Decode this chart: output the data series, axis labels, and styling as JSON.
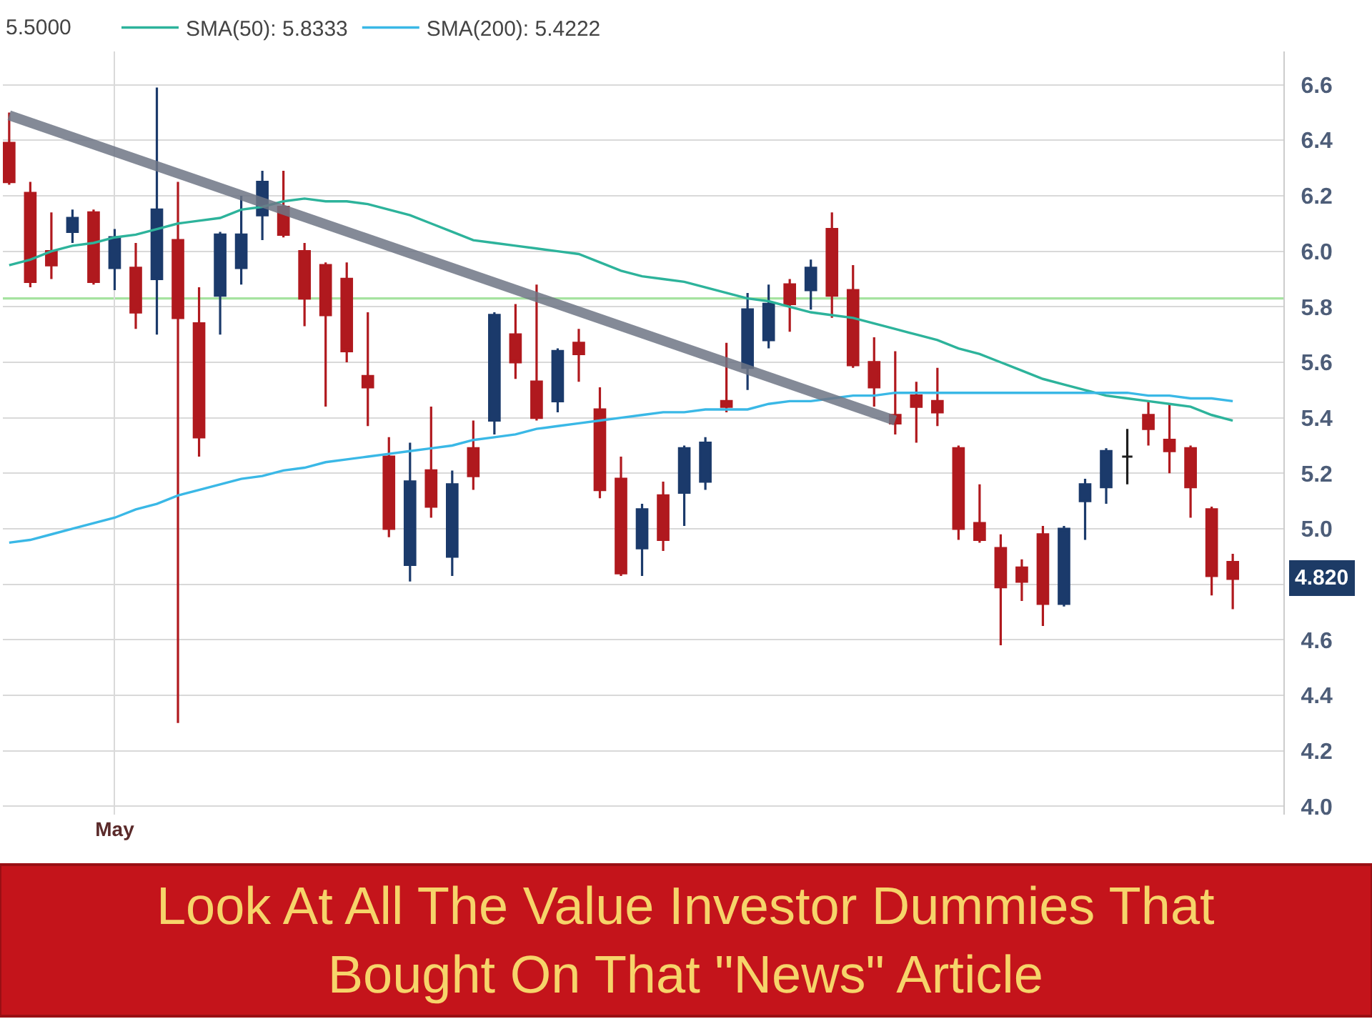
{
  "chart_data": {
    "type": "candlestick",
    "categories": [
      null,
      null,
      null,
      null,
      null,
      "May",
      null,
      null,
      null,
      null,
      null,
      null,
      null,
      null,
      null,
      null,
      null,
      null,
      null,
      null,
      null,
      null,
      null,
      null,
      null,
      null,
      null,
      null,
      null,
      null,
      null,
      null,
      null,
      null,
      null,
      null,
      null,
      null,
      null,
      null,
      null,
      null,
      null,
      null,
      null,
      null,
      null,
      null,
      null,
      null,
      null,
      null,
      null,
      null,
      null,
      null,
      null,
      null,
      null
    ],
    "ohlc": [
      [
        6.39,
        6.5,
        6.24,
        6.25
      ],
      [
        6.21,
        6.25,
        5.87,
        5.89
      ],
      [
        6.0,
        6.14,
        5.9,
        5.95
      ],
      [
        6.07,
        6.15,
        6.03,
        6.12
      ],
      [
        6.14,
        6.15,
        5.88,
        5.89
      ],
      [
        5.94,
        6.08,
        5.86,
        6.05
      ],
      [
        5.94,
        6.03,
        5.72,
        5.78
      ],
      [
        5.9,
        6.59,
        5.7,
        6.15
      ],
      [
        6.04,
        6.25,
        4.3,
        5.76
      ],
      [
        5.74,
        5.87,
        5.26,
        5.33
      ],
      [
        5.84,
        6.07,
        5.7,
        6.06
      ],
      [
        5.94,
        6.2,
        5.88,
        6.06
      ],
      [
        6.13,
        6.29,
        6.04,
        6.25
      ],
      [
        6.16,
        6.29,
        6.05,
        6.06
      ],
      [
        6.0,
        6.03,
        5.73,
        5.83
      ],
      [
        5.95,
        5.96,
        5.44,
        5.77
      ],
      [
        5.9,
        5.96,
        5.6,
        5.64
      ],
      [
        5.55,
        5.78,
        5.37,
        5.51
      ],
      [
        5.26,
        5.33,
        4.97,
        5.0
      ],
      [
        4.87,
        5.31,
        4.81,
        5.17
      ],
      [
        5.21,
        5.44,
        5.04,
        5.08
      ],
      [
        4.9,
        5.21,
        4.83,
        5.16
      ],
      [
        5.29,
        5.39,
        5.14,
        5.19
      ],
      [
        5.39,
        5.78,
        5.34,
        5.77
      ],
      [
        5.7,
        5.81,
        5.54,
        5.6
      ],
      [
        5.53,
        5.88,
        5.39,
        5.4
      ],
      [
        5.46,
        5.65,
        5.42,
        5.64
      ],
      [
        5.67,
        5.72,
        5.53,
        5.63
      ],
      [
        5.43,
        5.51,
        5.11,
        5.14
      ],
      [
        5.18,
        5.26,
        4.83,
        4.84
      ],
      [
        4.93,
        5.09,
        4.83,
        5.07
      ],
      [
        5.12,
        5.17,
        4.92,
        4.96
      ],
      [
        5.13,
        5.3,
        5.01,
        5.29
      ],
      [
        5.17,
        5.33,
        5.14,
        5.31
      ],
      [
        5.46,
        5.67,
        5.42,
        5.44
      ],
      [
        5.58,
        5.85,
        5.5,
        5.79
      ],
      [
        5.68,
        5.88,
        5.65,
        5.81
      ],
      [
        5.88,
        5.9,
        5.71,
        5.81
      ],
      [
        5.86,
        5.97,
        5.79,
        5.94
      ],
      [
        6.08,
        6.14,
        5.76,
        5.84
      ],
      [
        5.86,
        5.95,
        5.58,
        5.59
      ],
      [
        5.6,
        5.69,
        5.44,
        5.51
      ],
      [
        5.41,
        5.64,
        5.34,
        5.38
      ],
      [
        5.48,
        5.53,
        5.31,
        5.44
      ],
      [
        5.46,
        5.58,
        5.37,
        5.42
      ],
      [
        5.29,
        5.3,
        4.96,
        5.0
      ],
      [
        5.02,
        5.16,
        4.95,
        4.96
      ],
      [
        4.93,
        4.98,
        4.58,
        4.79
      ],
      [
        4.86,
        4.89,
        4.74,
        4.81
      ],
      [
        4.98,
        5.01,
        4.65,
        4.73
      ],
      [
        4.73,
        5.01,
        4.72,
        5.0
      ],
      [
        5.1,
        5.18,
        4.96,
        5.16
      ],
      [
        5.15,
        5.29,
        5.09,
        5.28
      ],
      [
        5.26,
        5.36,
        5.16,
        5.26
      ],
      [
        5.41,
        5.46,
        5.3,
        5.36
      ],
      [
        5.32,
        5.45,
        5.2,
        5.28
      ],
      [
        5.29,
        5.3,
        5.04,
        5.15
      ],
      [
        5.07,
        5.08,
        4.76,
        4.83
      ],
      [
        4.88,
        4.91,
        4.71,
        4.82
      ]
    ],
    "colors": [
      "#b0191e",
      "#b0191e",
      "#b0191e",
      "#1b3a6b",
      "#b0191e",
      "#1b3a6b",
      "#b0191e",
      "#1b3a6b",
      "#b0191e",
      "#b0191e",
      "#1b3a6b",
      "#1b3a6b",
      "#1b3a6b",
      "#b0191e",
      "#b0191e",
      "#b0191e",
      "#b0191e",
      "#b0191e",
      "#b0191e",
      "#1b3a6b",
      "#b0191e",
      "#1b3a6b",
      "#b0191e",
      "#1b3a6b",
      "#b0191e",
      "#b0191e",
      "#1b3a6b",
      "#b0191e",
      "#b0191e",
      "#b0191e",
      "#1b3a6b",
      "#b0191e",
      "#1b3a6b",
      "#1b3a6b",
      "#b0191e",
      "#1b3a6b",
      "#1b3a6b",
      "#b0191e",
      "#1b3a6b",
      "#b0191e",
      "#b0191e",
      "#b0191e",
      "#b0191e",
      "#b0191e",
      "#b0191e",
      "#b0191e",
      "#b0191e",
      "#b0191e",
      "#b0191e",
      "#b0191e",
      "#1b3a6b",
      "#1b3a6b",
      "#1b3a6b",
      "#1e1e1e",
      "#b0191e",
      "#b0191e",
      "#b0191e",
      "#b0191e",
      "#b0191e"
    ],
    "series": [
      {
        "name": "SMA(50): 5.8333",
        "type": "line",
        "color": "#2db39b",
        "values": [
          5.95,
          5.97,
          6.0,
          6.02,
          6.03,
          6.05,
          6.06,
          6.08,
          6.1,
          6.11,
          6.12,
          6.15,
          6.16,
          6.18,
          6.19,
          6.18,
          6.18,
          6.17,
          6.15,
          6.13,
          6.1,
          6.07,
          6.04,
          6.03,
          6.02,
          6.01,
          6.0,
          5.99,
          5.96,
          5.93,
          5.91,
          5.9,
          5.89,
          5.87,
          5.85,
          5.83,
          5.82,
          5.8,
          5.78,
          5.77,
          5.76,
          5.74,
          5.72,
          5.7,
          5.68,
          5.65,
          5.63,
          5.6,
          5.57,
          5.54,
          5.52,
          5.5,
          5.48,
          5.47,
          5.46,
          5.45,
          5.44,
          5.41,
          5.39
        ]
      },
      {
        "name": "SMA(200): 5.4222",
        "type": "line",
        "color": "#3ab8e6",
        "values": [
          4.95,
          4.96,
          4.98,
          5.0,
          5.02,
          5.04,
          5.07,
          5.09,
          5.12,
          5.14,
          5.16,
          5.18,
          5.19,
          5.21,
          5.22,
          5.24,
          5.25,
          5.26,
          5.27,
          5.28,
          5.29,
          5.3,
          5.32,
          5.33,
          5.34,
          5.36,
          5.37,
          5.38,
          5.39,
          5.4,
          5.41,
          5.42,
          5.42,
          5.43,
          5.43,
          5.43,
          5.45,
          5.46,
          5.46,
          5.47,
          5.48,
          5.48,
          5.49,
          5.49,
          5.49,
          5.49,
          5.49,
          5.49,
          5.49,
          5.49,
          5.49,
          5.49,
          5.49,
          5.49,
          5.48,
          5.48,
          5.47,
          5.47,
          5.46
        ]
      },
      {
        "type": "line",
        "color": "#6f7686",
        "values": [
          6.49,
          null,
          null,
          null,
          null,
          null,
          null,
          null,
          null,
          null,
          null,
          null,
          null,
          null,
          null,
          null,
          null,
          null,
          null,
          null,
          null,
          null,
          null,
          null,
          null,
          null,
          null,
          null,
          null,
          null,
          null,
          null,
          null,
          null,
          null,
          null,
          null,
          null,
          null,
          null,
          null,
          null,
          5.39,
          null,
          null,
          null,
          null,
          null,
          null,
          null,
          null,
          null,
          null,
          null,
          null,
          null,
          null,
          null,
          null
        ]
      }
    ],
    "ylim": [
      3.97,
      6.72
    ],
    "yticks": [
      {
        "value": 4.0,
        "label": "4.0"
      },
      4.2,
      4.4,
      4.6,
      {
        "value": 4.8,
        "label": null
      },
      {
        "value": 5.0,
        "label": "5.0"
      },
      5.2,
      5.4,
      5.6,
      5.8,
      {
        "value": 6.0,
        "label": "6.0"
      },
      6.2,
      6.4,
      6.6
    ],
    "grid": true,
    "legend": "top left",
    "ref_lines": [
      {
        "axis": "y",
        "value": 5.83,
        "color": "#a6e3a0"
      }
    ],
    "annotations": [
      "5.5000",
      "4.820",
      "Look At All The Value Investor Dummies That\nBought On That \"News\" Article"
    ]
  }
}
